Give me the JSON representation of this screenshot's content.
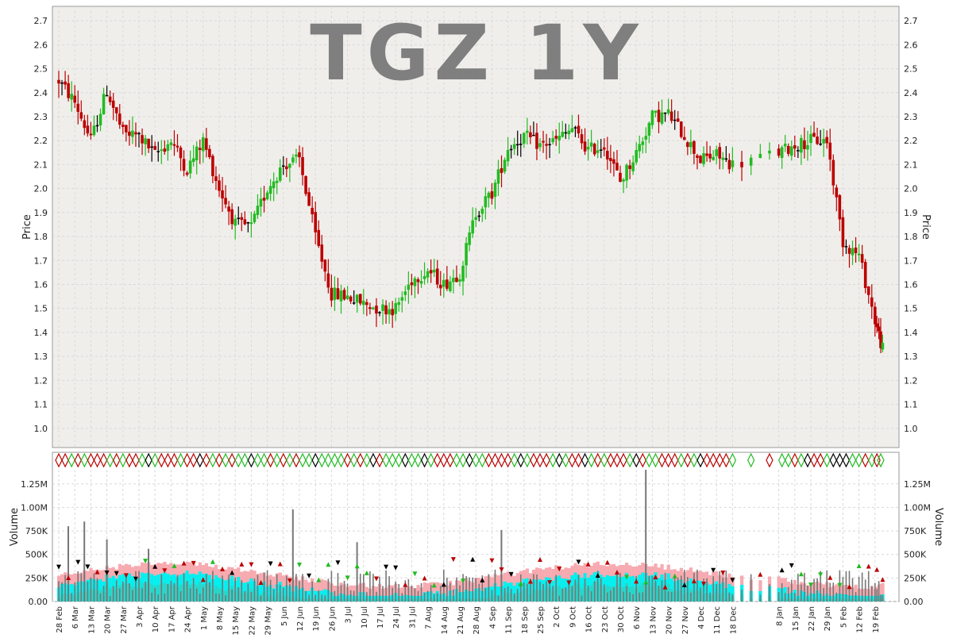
{
  "chart_data": [
    {
      "type": "candlestick",
      "title": "TGZ 1Y",
      "ylabel": "Price",
      "ylim": [
        0.92,
        2.76
      ],
      "yticks": [
        1.0,
        1.1,
        1.2,
        1.3,
        1.4,
        1.5,
        1.6,
        1.7,
        1.8,
        1.9,
        2.0,
        2.1,
        2.2,
        2.3,
        2.4,
        2.5,
        2.6,
        2.7
      ],
      "ytick_labels": [
        "1.0",
        "1.1",
        "1.2",
        "1.3",
        "1.4",
        "1.5",
        "1.6",
        "1.7",
        "1.8",
        "1.9",
        "2.0",
        "2.1",
        "2.2",
        "2.3",
        "2.4",
        "2.5",
        "2.6",
        "2.7"
      ],
      "grid": true,
      "anchor_points": [
        {
          "date": "28 Feb",
          "close": 2.45
        },
        {
          "date": "6 Mar",
          "close": 2.36
        },
        {
          "date": "13 Mar",
          "close": 2.2
        },
        {
          "date": "20 Mar",
          "close": 2.41
        },
        {
          "date": "27 Mar",
          "close": 2.23
        },
        {
          "date": "3 Apr",
          "close": 2.22
        },
        {
          "date": "10 Apr",
          "close": 2.14
        },
        {
          "date": "17 Apr",
          "close": 2.2
        },
        {
          "date": "24 Apr",
          "close": 2.08
        },
        {
          "date": "1 May",
          "close": 2.2
        },
        {
          "date": "8 May",
          "close": 2.0
        },
        {
          "date": "15 May",
          "close": 1.85
        },
        {
          "date": "22 May",
          "close": 1.84
        },
        {
          "date": "29 May",
          "close": 2.0
        },
        {
          "date": "5 Jun",
          "close": 2.1
        },
        {
          "date": "12 Jun",
          "close": 2.12
        },
        {
          "date": "19 Jun",
          "close": 1.8
        },
        {
          "date": "26 Jun",
          "close": 1.56
        },
        {
          "date": "3 Jul",
          "close": 1.55
        },
        {
          "date": "10 Jul",
          "close": 1.52
        },
        {
          "date": "17 Jul",
          "close": 1.5
        },
        {
          "date": "24 Jul",
          "close": 1.5
        },
        {
          "date": "31 Jul",
          "close": 1.62
        },
        {
          "date": "7 Aug",
          "close": 1.66
        },
        {
          "date": "14 Aug",
          "close": 1.6
        },
        {
          "date": "21 Aug",
          "close": 1.65
        },
        {
          "date": "28 Aug",
          "close": 1.9
        },
        {
          "date": "4 Sep",
          "close": 1.98
        },
        {
          "date": "11 Sep",
          "close": 2.17
        },
        {
          "date": "18 Sep",
          "close": 2.22
        },
        {
          "date": "25 Sep",
          "close": 2.18
        },
        {
          "date": "2 Oct",
          "close": 2.2
        },
        {
          "date": "9 Oct",
          "close": 2.25
        },
        {
          "date": "16 Oct",
          "close": 2.16
        },
        {
          "date": "23 Oct",
          "close": 2.18
        },
        {
          "date": "30 Oct",
          "close": 2.03
        },
        {
          "date": "6 Nov",
          "close": 2.15
        },
        {
          "date": "13 Nov",
          "close": 2.3
        },
        {
          "date": "20 Nov",
          "close": 2.31
        },
        {
          "date": "27 Nov",
          "close": 2.22
        },
        {
          "date": "4 Dec",
          "close": 2.12
        },
        {
          "date": "11 Dec",
          "close": 2.14
        },
        {
          "date": "18 Dec",
          "close": 2.1
        },
        {
          "date": "8 Jan",
          "close": 2.15
        },
        {
          "date": "15 Jan",
          "close": 2.18
        },
        {
          "date": "22 Jan",
          "close": 2.2
        },
        {
          "date": "29 Jan",
          "close": 2.2
        },
        {
          "date": "5 Feb",
          "close": 1.78
        },
        {
          "date": "12 Feb",
          "close": 1.72
        },
        {
          "date": "19 Feb",
          "close": 1.45
        }
      ]
    },
    {
      "type": "bar",
      "ylabel": "Volume",
      "ylim": [
        0,
        1400000
      ],
      "yticks": [
        0,
        250000,
        500000,
        750000,
        1000000,
        1250000
      ],
      "ytick_labels": [
        "0.00",
        "250K",
        "500K",
        "750K",
        "1.00M",
        "1.25M"
      ],
      "series_colors": {
        "avg_long": "#f7aab0",
        "avg_short": "#00f0f0",
        "avg_base": "#25d7ca",
        "volume_bar": "#777777"
      },
      "spikes": [
        {
          "date": "20 Mar",
          "volume": 660000
        },
        {
          "date": "24 Mar",
          "volume": 850000
        },
        {
          "date": "12 Apr",
          "volume": 560000
        },
        {
          "date": "22 Jun",
          "volume": 980000
        },
        {
          "date": "19 Jul",
          "volume": 630000
        },
        {
          "date": "8 Sep",
          "volume": 760000
        },
        {
          "date": "10 Nov",
          "volume": 1400000
        },
        {
          "date": "20 Feb",
          "volume": 800000
        }
      ]
    }
  ],
  "x_axis": {
    "tick_labels": [
      "28 Feb",
      "6 Mar",
      "13 Mar",
      "20 Mar",
      "27 Mar",
      "3 Apr",
      "10 Apr",
      "17 Apr",
      "24 Apr",
      "1 May",
      "8 May",
      "15 May",
      "22 May",
      "29 May",
      "5 Jun",
      "12 Jun",
      "19 Jun",
      "26 Jun",
      "3 Jul",
      "10 Jul",
      "17 Jul",
      "24 Jul",
      "31 Jul",
      "7 Aug",
      "14 Aug",
      "21 Aug",
      "28 Aug",
      "4 Sep",
      "11 Sep",
      "18 Sep",
      "25 Sep",
      "2 Oct",
      "9 Oct",
      "16 Oct",
      "23 Oct",
      "30 Oct",
      "6 Nov",
      "13 Nov",
      "20 Nov",
      "27 Nov",
      "4 Dec",
      "11 Dec",
      "18 Dec",
      "8 Jan",
      "15 Jan",
      "22 Jan",
      "29 Jan",
      "5 Feb",
      "12 Feb",
      "19 Feb"
    ]
  },
  "colors": {
    "up": "#22bb22",
    "down": "#bb0000",
    "flat": "#000000",
    "price_panel_bg": "#f0eeeb",
    "volume_panel_bg": "#ffffff",
    "title": "#7f7f7f"
  }
}
